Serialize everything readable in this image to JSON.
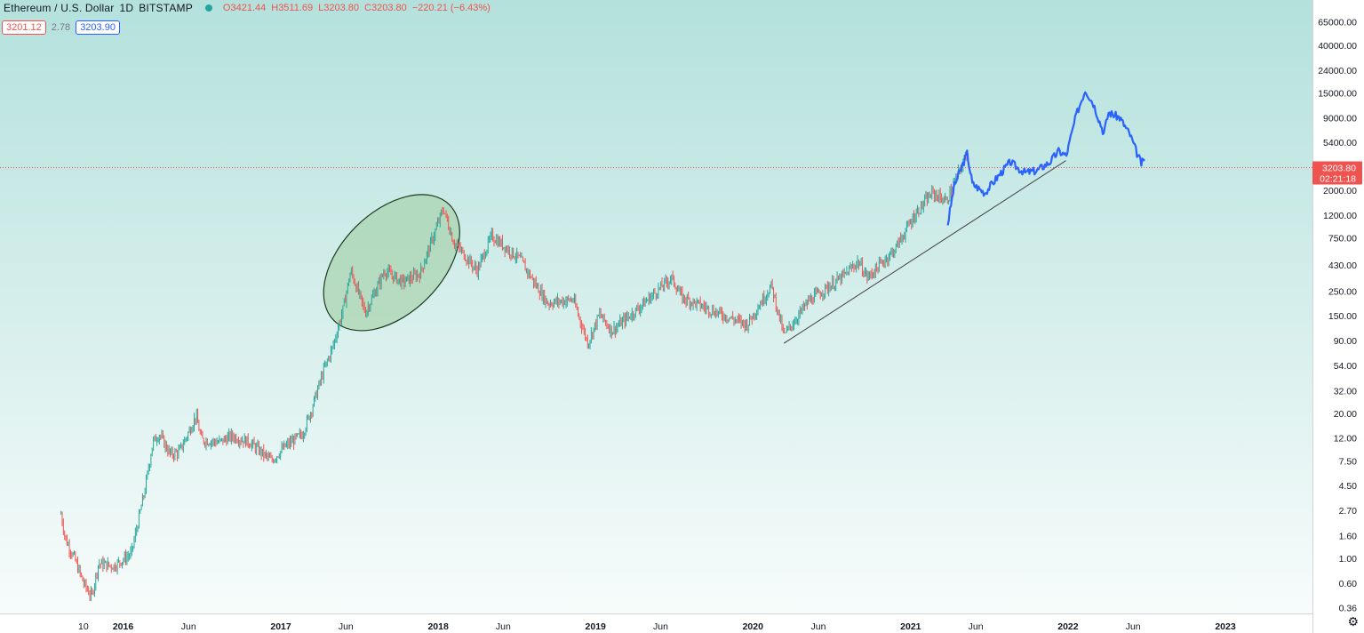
{
  "header": {
    "symbol": "Ethereum / U.S. Dollar",
    "interval": "1D",
    "exchange": "BITSTAMP",
    "open": "O3421.44",
    "high": "H3511.69",
    "low": "L3203.80",
    "close": "C3203.80",
    "change": "−220.21 (−6.43%)"
  },
  "quote": {
    "bid": "3201.12",
    "spread": "2.78",
    "ask": "3203.90"
  },
  "price_tag": {
    "price": "3203.80",
    "countdown": "02:21:18"
  },
  "colors": {
    "up": "#26a69a",
    "down": "#ef5350",
    "projection": "#2962ff",
    "ellipse_fill": "#9ccc9c",
    "background_top": "#b4e1dc",
    "background_bottom": "#f7fcfb"
  },
  "icons": {
    "settings": "gear-icon"
  },
  "chart_data": {
    "type": "candlestick",
    "title": "Ethereum / U.S. Dollar, 1D, BITSTAMP",
    "y_scale": "log",
    "ylim": [
      0.3,
      100000
    ],
    "xlim": [
      "2015-08-01",
      "2023-06-30"
    ],
    "y_ticks": [
      "65000.00",
      "40000.00",
      "24000.00",
      "15000.00",
      "9000.00",
      "5400.00",
      "2000.00",
      "1200.00",
      "750.00",
      "430.00",
      "250.00",
      "150.00",
      "90.00",
      "54.00",
      "32.00",
      "20.00",
      "12.00",
      "7.50",
      "4.50",
      "2.70",
      "1.60",
      "1.00",
      "0.60",
      "0.36"
    ],
    "x_ticks": [
      {
        "label": "10",
        "date": "2015-10-01"
      },
      {
        "label": "2016",
        "date": "2016-01-01"
      },
      {
        "label": "Jun",
        "date": "2016-06-01"
      },
      {
        "label": "2017",
        "date": "2017-01-01"
      },
      {
        "label": "Jun",
        "date": "2017-06-01"
      },
      {
        "label": "2018",
        "date": "2018-01-01"
      },
      {
        "label": "Jun",
        "date": "2018-06-01"
      },
      {
        "label": "2019",
        "date": "2019-01-01"
      },
      {
        "label": "Jun",
        "date": "2019-06-01"
      },
      {
        "label": "2020",
        "date": "2020-01-01"
      },
      {
        "label": "Jun",
        "date": "2020-06-01"
      },
      {
        "label": "2021",
        "date": "2021-01-01"
      },
      {
        "label": "Jun",
        "date": "2021-06-01"
      },
      {
        "label": "2022",
        "date": "2022-01-01"
      },
      {
        "label": "Jun",
        "date": "2022-06-01"
      },
      {
        "label": "2023",
        "date": "2023-01-01"
      }
    ],
    "price_path": [
      [
        "2015-08-10",
        2.5
      ],
      [
        "2015-08-20",
        1.5
      ],
      [
        "2015-09-10",
        1.0
      ],
      [
        "2015-10-01",
        0.6
      ],
      [
        "2015-10-20",
        0.45
      ],
      [
        "2015-11-05",
        0.9
      ],
      [
        "2015-12-10",
        0.85
      ],
      [
        "2016-01-20",
        1.1
      ],
      [
        "2016-02-20",
        4.0
      ],
      [
        "2016-03-10",
        11.0
      ],
      [
        "2016-03-25",
        13.0
      ],
      [
        "2016-04-20",
        8.5
      ],
      [
        "2016-05-10",
        9.0
      ],
      [
        "2016-06-01",
        13.5
      ],
      [
        "2016-06-18",
        19.0
      ],
      [
        "2016-07-01",
        11.5
      ],
      [
        "2016-08-10",
        11.0
      ],
      [
        "2016-09-10",
        12.5
      ],
      [
        "2016-10-20",
        11.0
      ],
      [
        "2016-12-10",
        7.5
      ],
      [
        "2017-01-10",
        10.0
      ],
      [
        "2017-02-20",
        13.0
      ],
      [
        "2017-03-10",
        20.0
      ],
      [
        "2017-04-10",
        48.0
      ],
      [
        "2017-05-01",
        78.0
      ],
      [
        "2017-05-25",
        170.0
      ],
      [
        "2017-06-12",
        380.0
      ],
      [
        "2017-07-16",
        160.0
      ],
      [
        "2017-08-30",
        380.0
      ],
      [
        "2017-10-10",
        300.0
      ],
      [
        "2017-11-20",
        360.0
      ],
      [
        "2017-12-20",
        760.0
      ],
      [
        "2018-01-13",
        1380.0
      ],
      [
        "2018-02-05",
        700.0
      ],
      [
        "2018-04-01",
        380.0
      ],
      [
        "2018-05-05",
        780.0
      ],
      [
        "2018-07-10",
        480.0
      ],
      [
        "2018-08-15",
        285.0
      ],
      [
        "2018-09-12",
        195.0
      ],
      [
        "2018-11-10",
        210.0
      ],
      [
        "2018-12-14",
        85.0
      ],
      [
        "2019-01-10",
        155.0
      ],
      [
        "2019-02-08",
        110.0
      ],
      [
        "2019-04-10",
        175.0
      ],
      [
        "2019-06-26",
        330.0
      ],
      [
        "2019-07-20",
        220.0
      ],
      [
        "2019-09-24",
        170.0
      ],
      [
        "2019-12-18",
        125.0
      ],
      [
        "2020-02-13",
        280.0
      ],
      [
        "2020-03-13",
        100.0
      ],
      [
        "2020-05-10",
        205.0
      ],
      [
        "2020-07-25",
        330.0
      ],
      [
        "2020-09-01",
        460.0
      ],
      [
        "2020-09-23",
        330.0
      ],
      [
        "2020-11-25",
        590.0
      ],
      [
        "2021-01-10",
        1200.0
      ],
      [
        "2021-02-20",
        1900.0
      ],
      [
        "2021-03-25",
        1600.0
      ],
      [
        "2021-05-12",
        4300.0
      ]
    ],
    "projection_path": [
      [
        "2021-03-28",
        1000.0
      ],
      [
        "2021-04-12",
        2200.0
      ],
      [
        "2021-05-12",
        4300.0
      ],
      [
        "2021-05-24",
        2300.0
      ],
      [
        "2021-06-22",
        1900.0
      ],
      [
        "2021-07-20",
        2600.0
      ],
      [
        "2021-08-20",
        3600.0
      ],
      [
        "2021-09-10",
        3100.0
      ],
      [
        "2021-09-24",
        2900.0
      ],
      [
        "2021-10-20",
        3000.0
      ],
      [
        "2021-11-20",
        3600.0
      ],
      [
        "2021-12-10",
        4500.0
      ],
      [
        "2021-12-28",
        4100.0
      ],
      [
        "2022-01-20",
        9500.0
      ],
      [
        "2022-02-10",
        16000.0
      ],
      [
        "2022-03-01",
        12000.0
      ],
      [
        "2022-03-25",
        6500.0
      ],
      [
        "2022-04-05",
        10000.0
      ],
      [
        "2022-05-01",
        9000.0
      ],
      [
        "2022-05-25",
        6300.0
      ],
      [
        "2022-06-10",
        4300.0
      ],
      [
        "2022-06-20",
        3500.0
      ],
      [
        "2022-06-28",
        3700.0
      ]
    ],
    "trendline": {
      "start": [
        "2020-03-13",
        85.0
      ],
      "end": [
        "2021-12-27",
        3700.0
      ]
    },
    "highlight_ellipse": {
      "center": [
        "2017-09-15",
        450.0
      ],
      "label": ""
    },
    "last_price": 3203.8
  }
}
